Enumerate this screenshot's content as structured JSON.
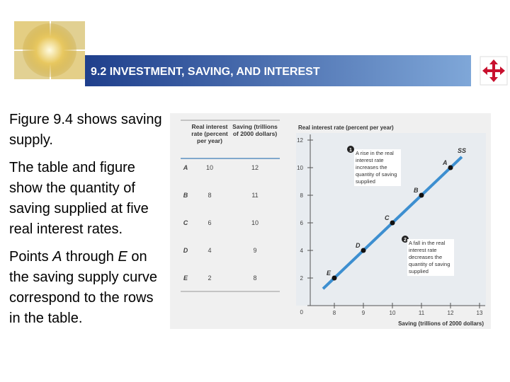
{
  "header": {
    "title": "9.2 INVESTMENT, SAVING, AND INTEREST"
  },
  "body": [
    [
      {
        "text": "Figure 9.4 shows saving supply.",
        "italic": false
      }
    ],
    [
      {
        "text": "The table and figure show the quantity of saving supplied at five real interest rates.",
        "italic": false
      }
    ],
    [
      {
        "text": "Points ",
        "italic": false
      },
      {
        "text": "A",
        "italic": true
      },
      {
        "text": " through ",
        "italic": false
      },
      {
        "text": "E",
        "italic": true
      },
      {
        "text": " on the saving supply curve correspond to the rows in the table.",
        "italic": false
      }
    ]
  ],
  "table": {
    "columns": [
      "Real interest rate (percent per year)",
      "Saving (trillions of 2000 dollars)"
    ],
    "rows": [
      [
        "A",
        10,
        12
      ],
      [
        "B",
        8,
        11
      ],
      [
        "C",
        6,
        10
      ],
      [
        "D",
        4,
        9
      ],
      [
        "E",
        2,
        8
      ]
    ]
  },
  "chart_data": {
    "type": "line",
    "y_label": "Real interest rate (percent per year)",
    "x_label": "Saving (trillions of 2000 dollars)",
    "xlim": [
      7,
      13
    ],
    "xticks": [
      8,
      9,
      10,
      11,
      12,
      13
    ],
    "ylim": [
      0,
      12
    ],
    "yticks": [
      0,
      2,
      4,
      6,
      8,
      10,
      12
    ],
    "series": [
      {
        "name": "SS",
        "color": "#3d8fd0",
        "x": [
          8,
          9,
          10,
          11,
          12
        ],
        "values": [
          2,
          4,
          6,
          8,
          10
        ],
        "point_labels": [
          "E",
          "D",
          "C",
          "B",
          "A"
        ]
      }
    ],
    "annotations": [
      {
        "number": "1",
        "text": "A rise in the real interest rate increases the quantity of saving supplied"
      },
      {
        "number": "2",
        "text": "A fall in the real interest rate decreases the quantity of saving supplied"
      }
    ]
  }
}
